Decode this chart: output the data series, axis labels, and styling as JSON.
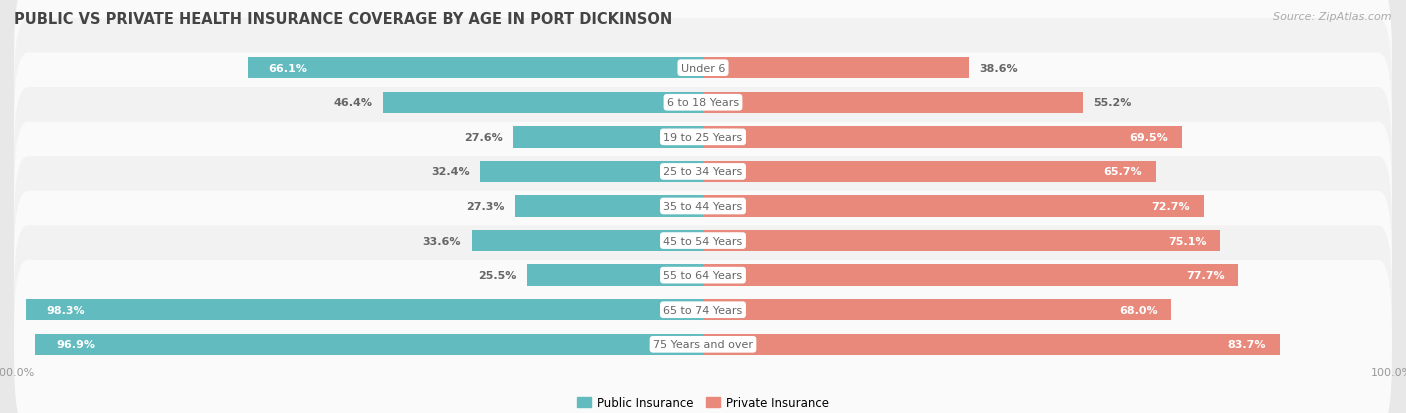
{
  "title": "PUBLIC VS PRIVATE HEALTH INSURANCE COVERAGE BY AGE IN PORT DICKINSON",
  "source": "Source: ZipAtlas.com",
  "categories": [
    "Under 6",
    "6 to 18 Years",
    "19 to 25 Years",
    "25 to 34 Years",
    "35 to 44 Years",
    "45 to 54 Years",
    "55 to 64 Years",
    "65 to 74 Years",
    "75 Years and over"
  ],
  "public_values": [
    66.1,
    46.4,
    27.6,
    32.4,
    27.3,
    33.6,
    25.5,
    98.3,
    96.9
  ],
  "private_values": [
    38.6,
    55.2,
    69.5,
    65.7,
    72.7,
    75.1,
    77.7,
    68.0,
    83.7
  ],
  "public_color": "#62bbbf",
  "private_color": "#e8897c",
  "bg_color": "#e8e8e8",
  "row_bg_odd": "#f2f2f2",
  "row_bg_even": "#fafafa",
  "label_color_white": "#ffffff",
  "label_color_dark": "#666666",
  "center_label_color": "#666666",
  "max_value": 100.0,
  "title_fontsize": 10.5,
  "source_fontsize": 8,
  "bar_label_fontsize": 8,
  "category_fontsize": 8,
  "legend_fontsize": 8.5,
  "axis_label_fontsize": 8
}
